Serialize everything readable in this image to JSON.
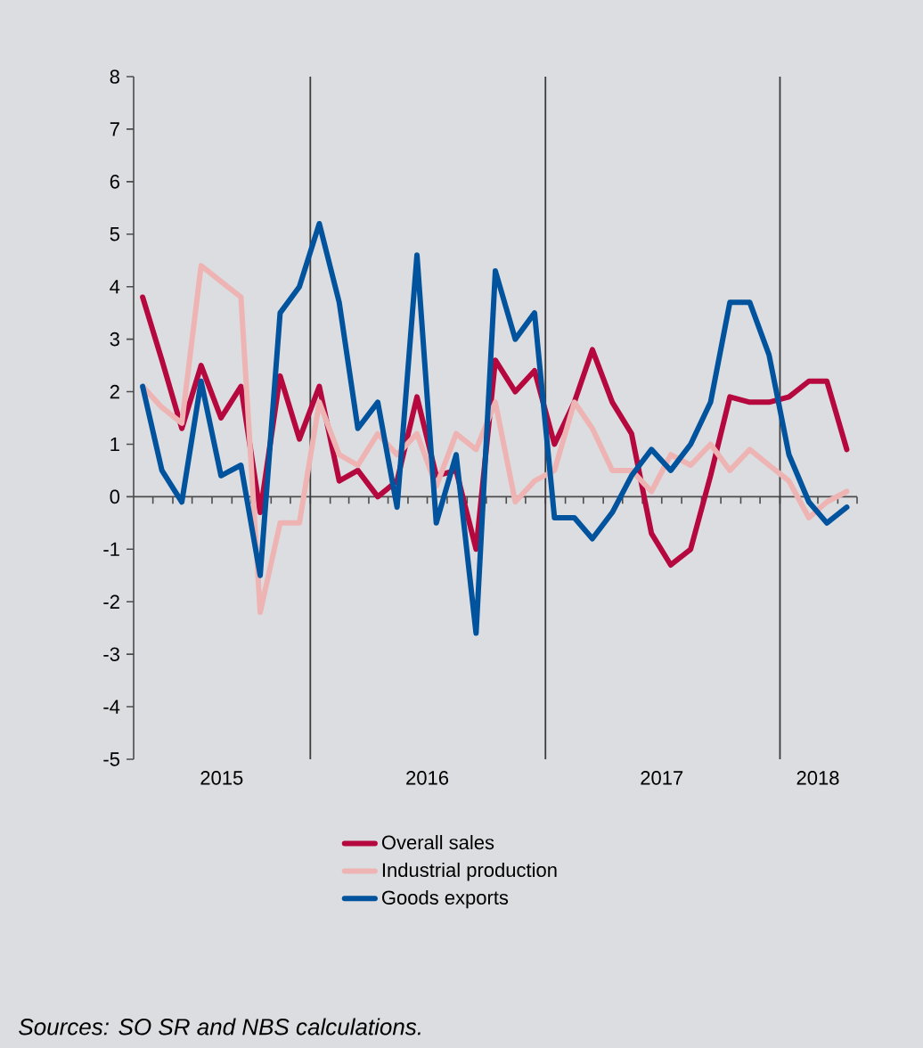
{
  "chart_data": {
    "type": "line",
    "x": [
      "2015-04-15",
      "2015-05-15",
      "2015-06-15",
      "2015-07-15",
      "2015-08-15",
      "2015-09-15",
      "2015-10-15",
      "2015-11-15",
      "2015-12-15",
      "2016-01-15",
      "2016-02-15",
      "2016-03-15",
      "2016-04-15",
      "2016-05-15",
      "2016-06-15",
      "2016-07-15",
      "2016-08-15",
      "2016-09-15",
      "2016-10-15",
      "2016-11-15",
      "2016-12-15",
      "2017-01-15",
      "2017-02-15",
      "2017-03-15",
      "2017-04-15",
      "2017-05-15",
      "2017-06-15",
      "2017-07-15",
      "2017-08-15",
      "2017-09-15",
      "2017-10-15",
      "2017-11-15",
      "2017-12-15",
      "2018-01-15",
      "2018-02-15",
      "2018-03-15",
      "2018-04-15"
    ],
    "series": [
      {
        "name": "Overall sales",
        "color": "#b5083f",
        "values": [
          3.8,
          2.6,
          1.3,
          2.5,
          1.5,
          2.1,
          -0.3,
          2.3,
          1.1,
          2.1,
          0.3,
          0.5,
          0.0,
          0.3,
          1.9,
          0.4,
          0.5,
          -1.0,
          2.6,
          2.0,
          2.4,
          1.0,
          1.8,
          2.8,
          1.8,
          1.2,
          -0.7,
          -1.3,
          -1.0,
          0.4,
          1.9,
          1.8,
          1.8,
          1.9,
          2.2,
          2.2,
          0.9
        ]
      },
      {
        "name": "Industrial production",
        "color": "#eeb4b4",
        "values": [
          2.1,
          1.7,
          1.4,
          4.4,
          4.1,
          3.8,
          -2.2,
          -0.5,
          -0.5,
          1.8,
          0.8,
          0.6,
          1.2,
          0.8,
          1.2,
          0.2,
          1.2,
          0.9,
          1.8,
          -0.1,
          0.3,
          0.5,
          1.8,
          1.3,
          0.5,
          0.5,
          0.1,
          0.8,
          0.6,
          1.0,
          0.5,
          0.9,
          0.6,
          0.3,
          -0.4,
          -0.1,
          0.1
        ]
      },
      {
        "name": "Goods exports",
        "color": "#00539c",
        "values": [
          2.1,
          0.5,
          -0.1,
          2.2,
          0.4,
          0.6,
          -1.5,
          3.5,
          4.0,
          5.2,
          3.7,
          1.3,
          1.8,
          -0.2,
          4.6,
          -0.5,
          0.8,
          -2.6,
          4.3,
          3.0,
          3.5,
          -0.4,
          -0.4,
          -0.8,
          -0.3,
          0.4,
          0.9,
          0.5,
          1.0,
          1.8,
          3.7,
          3.7,
          2.7,
          0.8,
          -0.1,
          -0.5,
          -0.2
        ]
      }
    ],
    "xlim": [
      "2015-04-01",
      "2018-05-01"
    ],
    "xticks": [
      {
        "value": "2015-08-16",
        "label": "2015"
      },
      {
        "value": "2016-07-01",
        "label": "2016"
      },
      {
        "value": "2017-07-01",
        "label": "2017"
      },
      {
        "value": "2018-03-01",
        "label": "2018"
      },
      {
        "value": "2015-05-01",
        "label": null
      },
      {
        "value": "2015-06-01",
        "label": null
      },
      {
        "value": "2015-07-01",
        "label": null
      },
      {
        "value": "2015-08-01",
        "label": null
      },
      {
        "value": "2015-09-01",
        "label": null
      },
      {
        "value": "2015-10-01",
        "label": null
      },
      {
        "value": "2015-11-01",
        "label": null
      },
      {
        "value": "2015-12-01",
        "label": null
      },
      {
        "value": "2016-01-01",
        "label": null
      },
      {
        "value": "2016-02-01",
        "label": null
      },
      {
        "value": "2016-03-01",
        "label": null
      },
      {
        "value": "2016-04-01",
        "label": null
      },
      {
        "value": "2016-05-01",
        "label": null
      },
      {
        "value": "2016-06-01",
        "label": null
      },
      {
        "value": "2016-07-01",
        "label": null
      },
      {
        "value": "2016-08-01",
        "label": null
      },
      {
        "value": "2016-09-01",
        "label": null
      },
      {
        "value": "2016-10-01",
        "label": null
      },
      {
        "value": "2016-11-01",
        "label": null
      },
      {
        "value": "2016-12-01",
        "label": null
      },
      {
        "value": "2017-01-01",
        "label": null
      },
      {
        "value": "2017-02-01",
        "label": null
      },
      {
        "value": "2017-03-01",
        "label": null
      },
      {
        "value": "2017-04-01",
        "label": null
      },
      {
        "value": "2017-05-01",
        "label": null
      },
      {
        "value": "2017-06-01",
        "label": null
      },
      {
        "value": "2017-07-01",
        "label": null
      },
      {
        "value": "2017-08-01",
        "label": null
      },
      {
        "value": "2017-09-01",
        "label": null
      },
      {
        "value": "2017-10-01",
        "label": null
      },
      {
        "value": "2017-11-01",
        "label": null
      },
      {
        "value": "2017-12-01",
        "label": null
      },
      {
        "value": "2018-01-01",
        "label": null
      },
      {
        "value": "2018-02-01",
        "label": null
      },
      {
        "value": "2018-03-01",
        "label": null
      },
      {
        "value": "2018-04-01",
        "label": null
      },
      {
        "value": "2018-05-01",
        "label": null
      }
    ],
    "ylim": [
      -5,
      8
    ],
    "yticks": [
      -5,
      -4,
      -3,
      -2,
      -1,
      0,
      1,
      2,
      3,
      4,
      5,
      6,
      7,
      8
    ],
    "ref_lines": [
      {
        "axis": "x",
        "value": "2016-01-01",
        "color": "#3c3c3c"
      },
      {
        "axis": "x",
        "value": "2017-01-01",
        "color": "#3c3c3c"
      },
      {
        "axis": "x",
        "value": "2018-01-01",
        "color": "#3c3c3c"
      }
    ],
    "legend": "bottom",
    "annotations": [
      "Sources: SO SR and NBS calculations."
    ]
  }
}
